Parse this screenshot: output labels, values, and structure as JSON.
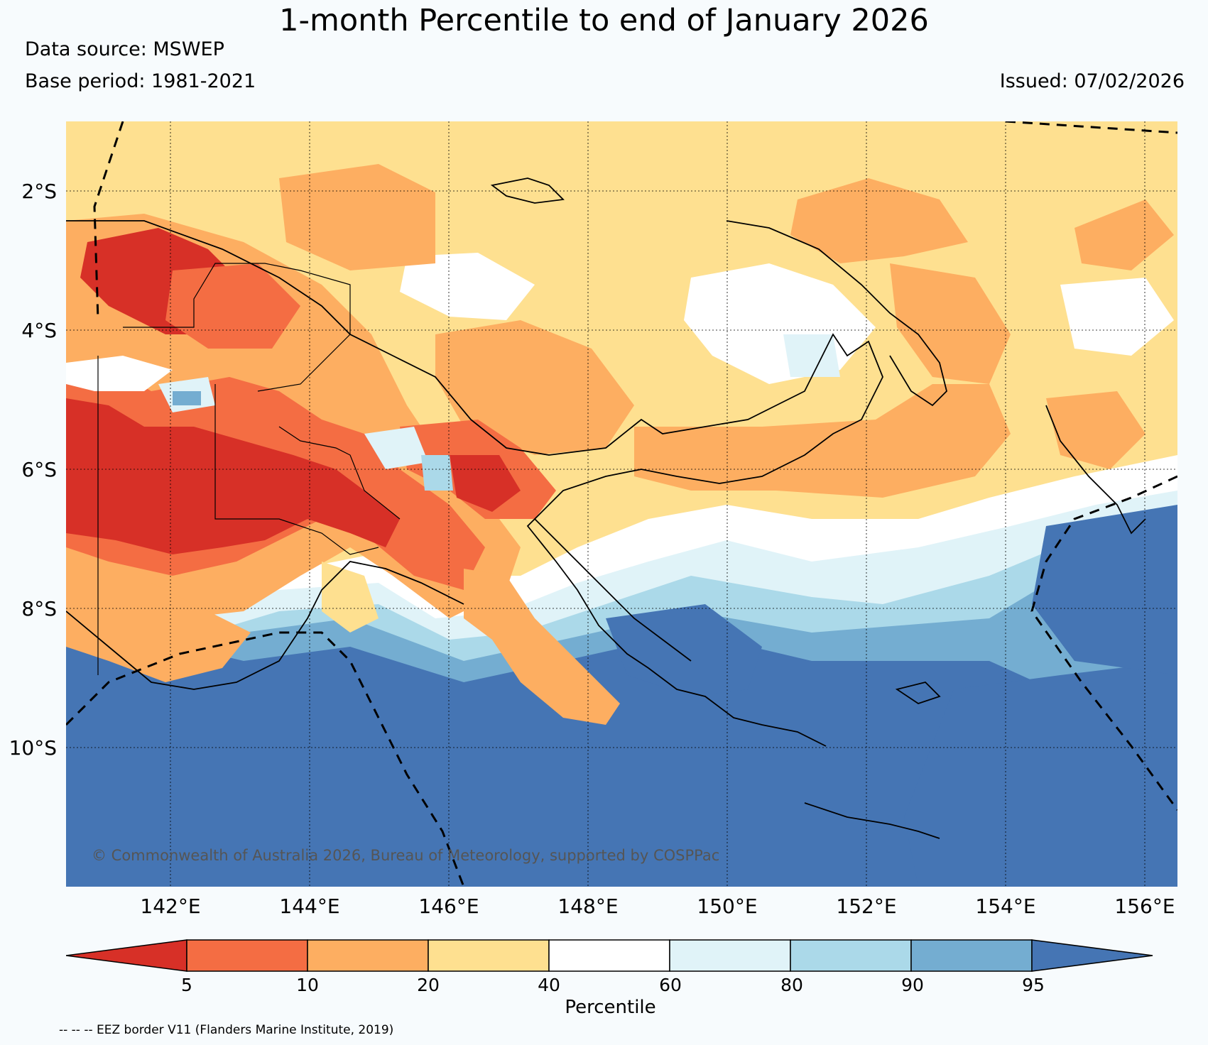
{
  "header": {
    "title": "1-month Percentile to end of January 2026",
    "source": "Data source: MSWEP",
    "base_period": "Base period: 1981-2021",
    "issued": "Issued: 07/02/2026"
  },
  "map": {
    "lat_labels": [
      "2°S",
      "4°S",
      "6°S",
      "8°S",
      "10°S"
    ],
    "lon_labels": [
      "142°E",
      "144°E",
      "146°E",
      "148°E",
      "150°E",
      "152°E",
      "154°E",
      "156°E"
    ],
    "copyright": "© Commonwealth of Australia 2026, Bureau of Meteorology, supported by COSPPac",
    "region": "Papua New Guinea"
  },
  "colorbar": {
    "label": "Percentile",
    "ticks": [
      "5",
      "10",
      "20",
      "40",
      "60",
      "80",
      "90",
      "95"
    ],
    "colors": [
      "#d73027",
      "#f46d43",
      "#fdae61",
      "#fee090",
      "#ffffff",
      "#e0f3f8",
      "#abd9e9",
      "#74add1",
      "#4575b4"
    ]
  },
  "footer": {
    "eez_note": "-- -- -- EEZ border V11 (Flanders Marine Institute, 2019)"
  }
}
